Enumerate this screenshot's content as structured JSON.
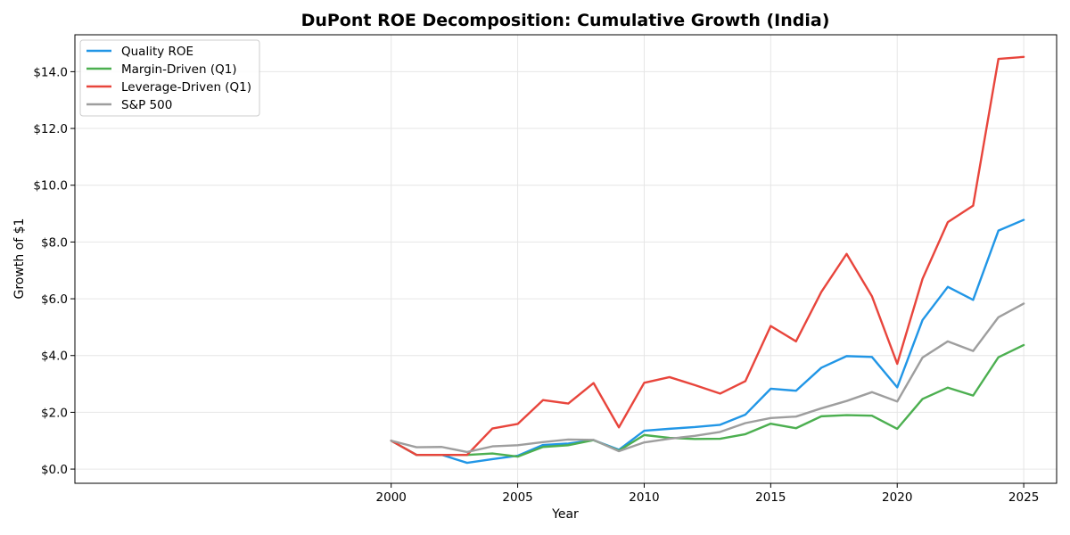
{
  "chart_data": {
    "type": "line",
    "title": "DuPont ROE Decomposition: Cumulative Growth (India)",
    "xlabel": "Year",
    "ylabel": "Growth of $1",
    "xlim": [
      1987.5,
      2026.3
    ],
    "ylim": [
      -0.5,
      15.3
    ],
    "xticks": [
      2000,
      2005,
      2010,
      2015,
      2020,
      2025
    ],
    "yticks": [
      0,
      2,
      4,
      6,
      8,
      10,
      12,
      14
    ],
    "ytick_labels": [
      "$0.0",
      "$2.0",
      "$4.0",
      "$6.0",
      "$8.0",
      "$10.0",
      "$12.0",
      "$14.0"
    ],
    "grid": true,
    "legend_position": "top-left",
    "x": [
      2000,
      2001,
      2002,
      2003,
      2004,
      2005,
      2006,
      2007,
      2008,
      2009,
      2010,
      2011,
      2012,
      2013,
      2014,
      2015,
      2016,
      2017,
      2018,
      2019,
      2020,
      2021,
      2022,
      2023,
      2024,
      2025
    ],
    "series": [
      {
        "name": "Quality ROE",
        "color": "#2196e6",
        "values": [
          1.0,
          0.5,
          0.5,
          0.22,
          0.35,
          0.47,
          0.85,
          0.9,
          1.02,
          0.68,
          1.35,
          1.42,
          1.48,
          1.56,
          1.92,
          2.83,
          2.76,
          3.57,
          3.98,
          3.95,
          2.88,
          5.25,
          6.42,
          5.96,
          8.4,
          8.78
        ]
      },
      {
        "name": "Margin-Driven (Q1)",
        "color": "#4caf50",
        "values": [
          1.0,
          0.5,
          0.5,
          0.5,
          0.55,
          0.44,
          0.78,
          0.84,
          1.02,
          0.65,
          1.2,
          1.1,
          1.06,
          1.07,
          1.23,
          1.6,
          1.44,
          1.86,
          1.9,
          1.88,
          1.42,
          2.47,
          2.87,
          2.59,
          3.94,
          4.37
        ]
      },
      {
        "name": "Leverage-Driven (Q1)",
        "color": "#e8453c",
        "values": [
          1.0,
          0.5,
          0.5,
          0.5,
          1.43,
          1.59,
          2.43,
          2.31,
          3.03,
          1.47,
          3.04,
          3.24,
          2.96,
          2.66,
          3.1,
          5.04,
          4.5,
          6.24,
          7.58,
          6.09,
          3.71,
          6.7,
          8.7,
          9.28,
          14.45,
          14.52
        ]
      },
      {
        "name": "S&P 500",
        "color": "#9e9e9e",
        "values": [
          1.0,
          0.77,
          0.78,
          0.6,
          0.8,
          0.84,
          0.95,
          1.04,
          1.03,
          0.63,
          0.94,
          1.07,
          1.17,
          1.31,
          1.62,
          1.8,
          1.85,
          2.14,
          2.4,
          2.71,
          2.38,
          3.93,
          4.5,
          4.16,
          5.35,
          5.83
        ]
      }
    ]
  }
}
